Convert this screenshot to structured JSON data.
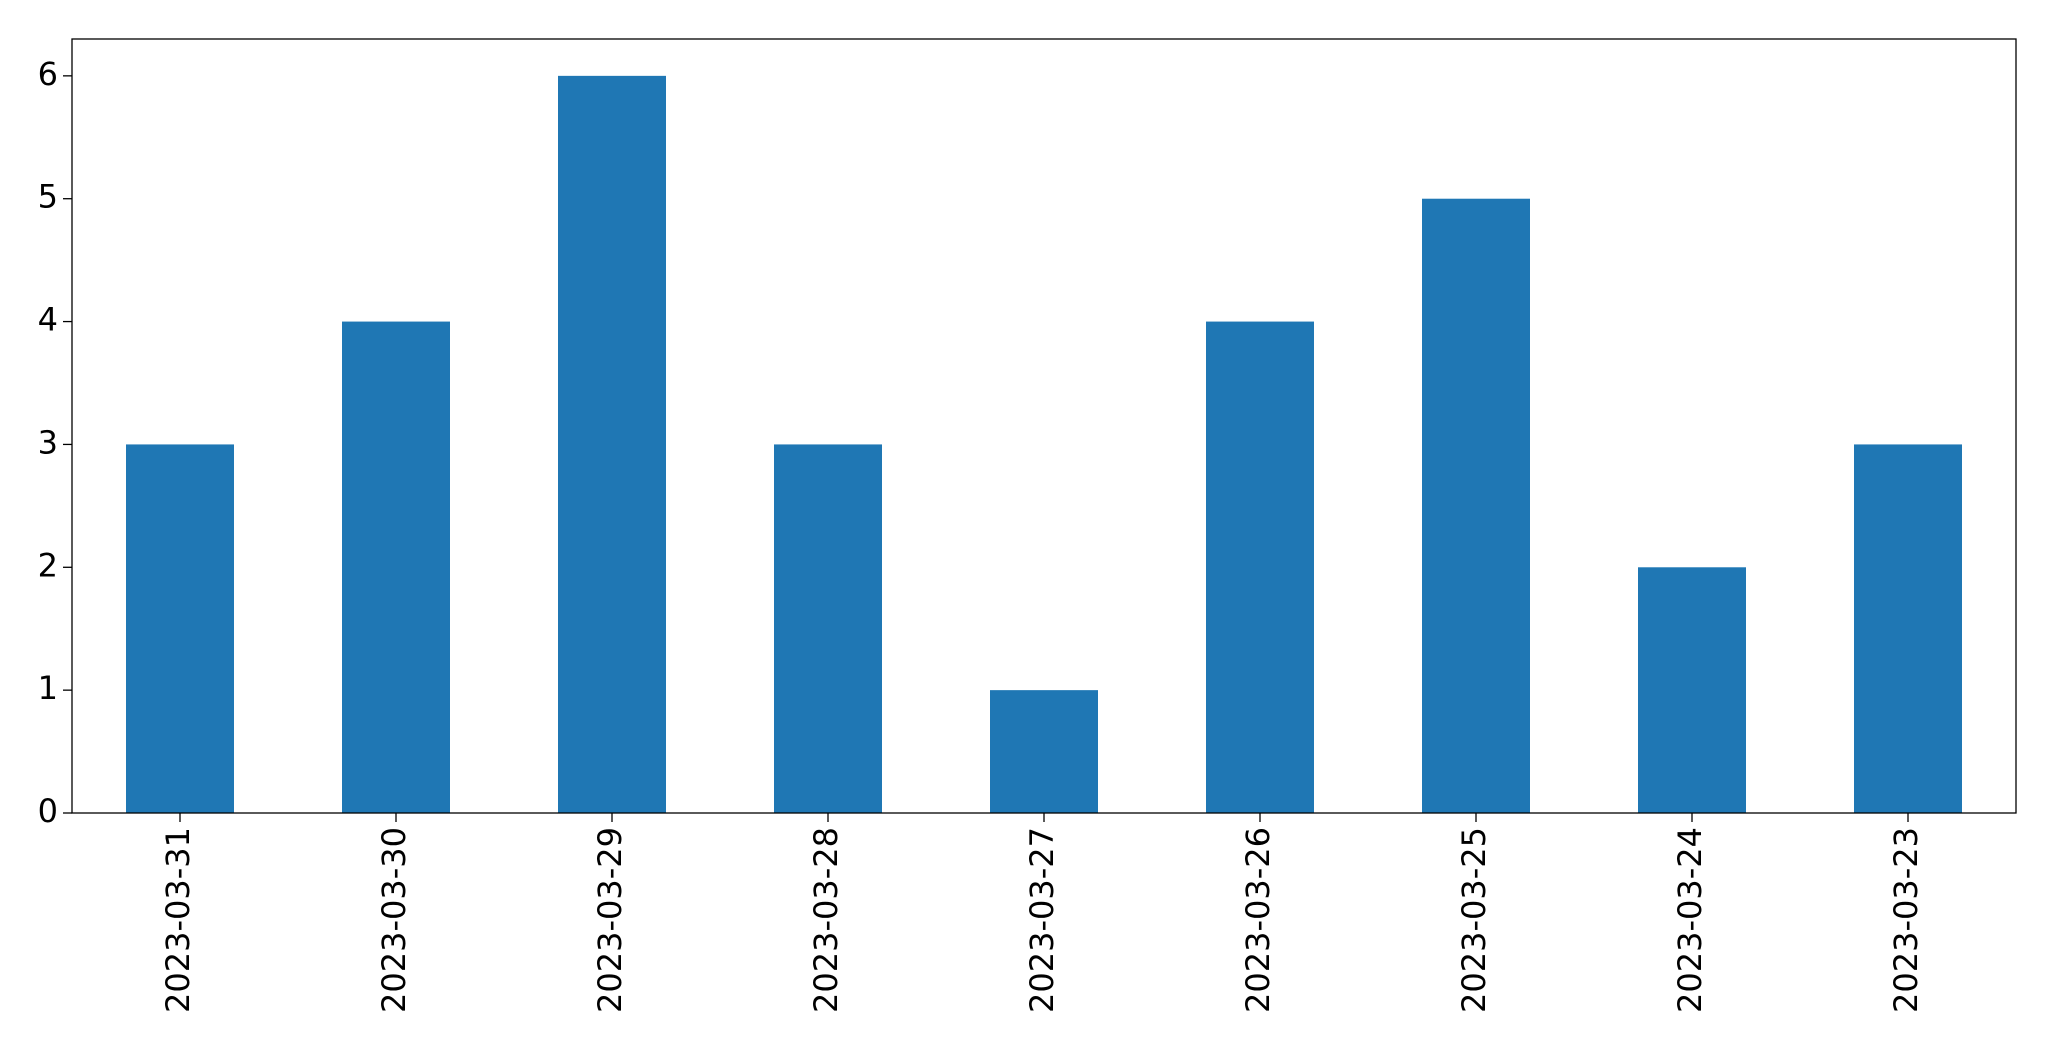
{
  "chart_data": {
    "type": "bar",
    "categories": [
      "2023-03-31",
      "2023-03-30",
      "2023-03-29",
      "2023-03-28",
      "2023-03-27",
      "2023-03-26",
      "2023-03-25",
      "2023-03-24",
      "2023-03-23"
    ],
    "values": [
      3,
      4,
      6,
      3,
      1,
      4,
      5,
      2,
      3
    ],
    "color": "#1f77b4",
    "ylim": [
      0,
      6.3
    ],
    "yticks": [
      0,
      1,
      2,
      3,
      4,
      5,
      6
    ],
    "grid": false
  }
}
